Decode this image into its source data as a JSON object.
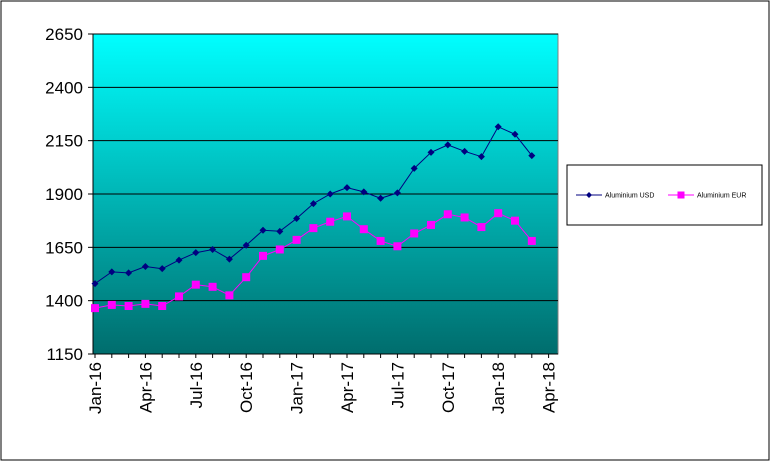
{
  "chart_data": {
    "type": "line",
    "title": "",
    "xlabel": "",
    "ylabel": "",
    "ylim": [
      1150,
      2650
    ],
    "yticks": [
      1150,
      1400,
      1650,
      1900,
      2150,
      2400,
      2650
    ],
    "x_tick_labels": [
      "Jan-16",
      "Apr-16",
      "Jul-16",
      "Oct-16",
      "Jan-17",
      "Apr-17",
      "Jul-17",
      "Oct-17",
      "Jan-18",
      "Apr-18"
    ],
    "x_range_months": [
      "Jan-16",
      "Apr-18"
    ],
    "x": [
      "Jan-16",
      "Feb-16",
      "Mar-16",
      "Apr-16",
      "May-16",
      "Jun-16",
      "Jul-16",
      "Aug-16",
      "Sep-16",
      "Oct-16",
      "Nov-16",
      "Dec-16",
      "Jan-17",
      "Feb-17",
      "Mar-17",
      "Apr-17",
      "May-17",
      "Jun-17",
      "Jul-17",
      "Aug-17",
      "Sep-17",
      "Oct-17",
      "Nov-17",
      "Dec-17",
      "Jan-18",
      "Feb-18",
      "Mar-18"
    ],
    "grid": true,
    "legend_position": "right",
    "background_gradient": [
      "#00ffff",
      "#006d6d"
    ],
    "series": [
      {
        "name": "Aluminium USD",
        "color": "#000080",
        "marker": "diamond",
        "values": [
          1480,
          1535,
          1530,
          1560,
          1550,
          1590,
          1625,
          1640,
          1595,
          1660,
          1730,
          1725,
          1785,
          1855,
          1900,
          1930,
          1910,
          1880,
          1905,
          2020,
          2095,
          2130,
          2100,
          2075,
          2215,
          2180,
          2080
        ]
      },
      {
        "name": "Aluminium EUR",
        "color": "#ff00ff",
        "marker": "square",
        "values": [
          1365,
          1380,
          1375,
          1385,
          1375,
          1420,
          1475,
          1465,
          1425,
          1510,
          1610,
          1640,
          1685,
          1740,
          1770,
          1795,
          1735,
          1680,
          1655,
          1715,
          1755,
          1805,
          1790,
          1745,
          1810,
          1775,
          1680
        ]
      }
    ]
  }
}
